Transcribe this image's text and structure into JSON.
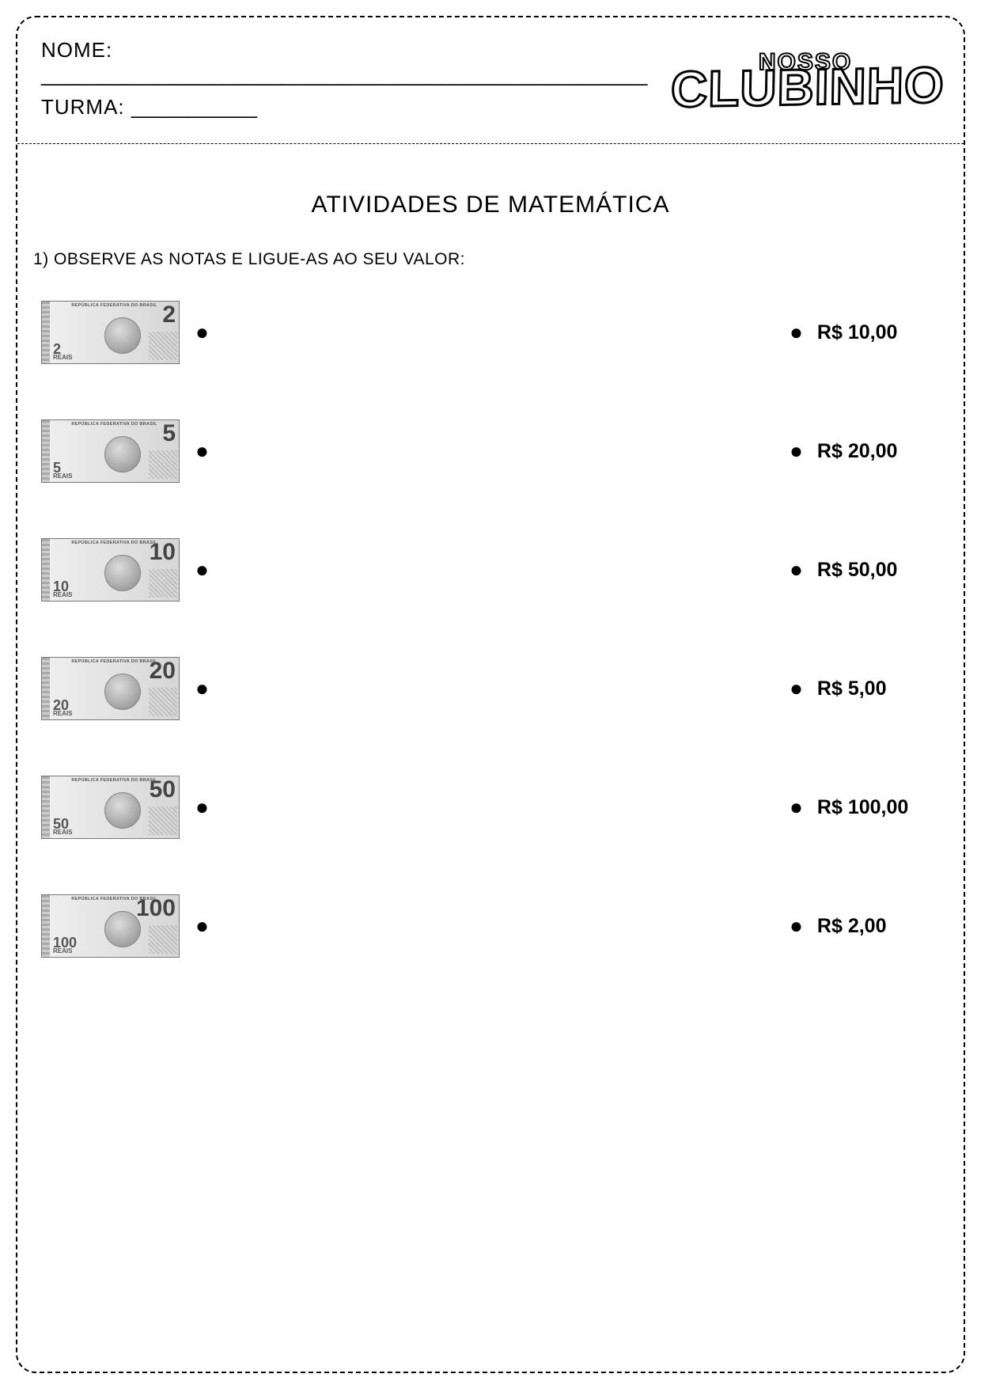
{
  "header": {
    "name_label": "NOME:",
    "name_blank": "_____________________________________________________",
    "class_label": "TURMA:",
    "class_blank": "___________",
    "logo_top": "NOSSO",
    "logo_main": "CLUBINHO"
  },
  "title": "ATIVIDADES DE MATEMÁTICA",
  "instruction": "1) OBSERVE AS NOTAS E LIGUE-AS AO SEU VALOR:",
  "bullet_glyph": "●",
  "note_header_text": "REPÚBLICA FEDERATIVA DO BRASIL",
  "note_unit": "REAIS",
  "rows": [
    {
      "note_value": "2",
      "value_label": "R$ 10,00"
    },
    {
      "note_value": "5",
      "value_label": "R$ 20,00"
    },
    {
      "note_value": "10",
      "value_label": "R$ 50,00"
    },
    {
      "note_value": "20",
      "value_label": "R$ 5,00"
    },
    {
      "note_value": "50",
      "value_label": "R$ 100,00"
    },
    {
      "note_value": "100",
      "value_label": "R$ 2,00"
    }
  ],
  "colors": {
    "page_bg": "#ffffff",
    "text": "#000000",
    "note_bg": "#e8e8e8",
    "note_border": "#777777"
  }
}
